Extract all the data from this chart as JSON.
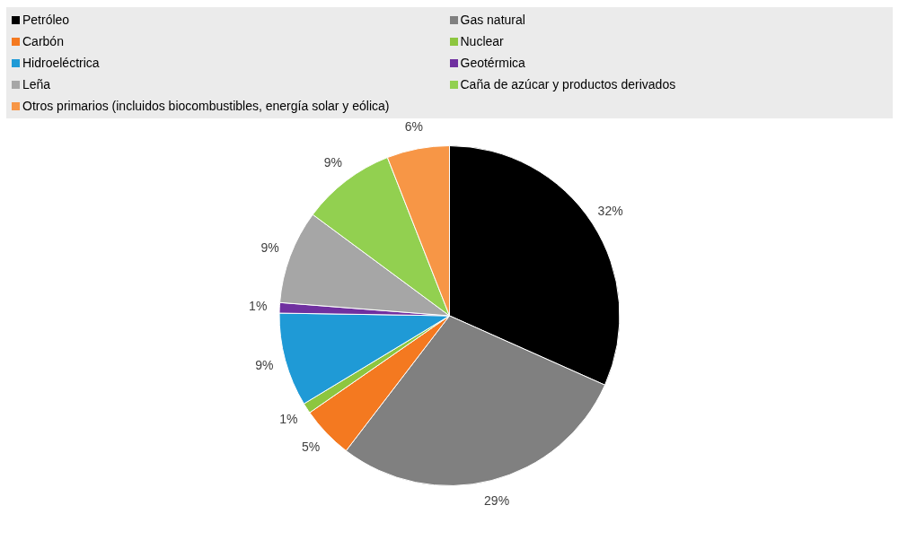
{
  "chart_data": {
    "type": "pie",
    "legend": "top",
    "categories": [
      "Petróleo",
      "Gas natural",
      "Carbón",
      "Nuclear",
      "Hidroeléctrica",
      "Geotérmica",
      "Leña",
      "Caña de azúcar y productos derivados",
      "Otros primarios (incluidos biocombustibles, energía solar y eólica)"
    ],
    "values": [
      32,
      29,
      5,
      1,
      9,
      1,
      9,
      9,
      6
    ],
    "value_labels": [
      "32%",
      "29%",
      "5%",
      "1%",
      "9%",
      "1%",
      "9%",
      "9%",
      "6%"
    ],
    "colors": [
      "#000000",
      "#808080",
      "#f47920",
      "#8dc63f",
      "#1f9ad6",
      "#7030a0",
      "#a6a6a6",
      "#92d050",
      "#f79646"
    ]
  }
}
